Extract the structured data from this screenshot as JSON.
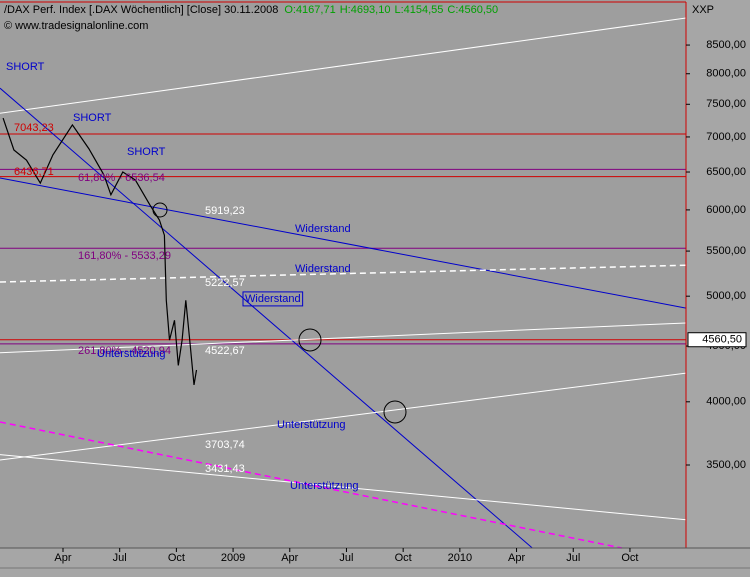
{
  "chart_data": {
    "type": "line",
    "title": "/DAX Perf. Index [.DAX  Wöchentlich] [Close] 30.11.2008",
    "ohlc": [
      "O:4167,71",
      "H:4693,10",
      "L:4154,55",
      "C:4560,50"
    ],
    "source": "© www.tradesignalonline.com",
    "y_axis_label": "XXP",
    "log_scale": true,
    "xlim": [
      "2007-12-21",
      "2010-12-30"
    ],
    "ylim": [
      2937,
      9000
    ],
    "yticks": [
      {
        "value": 3500,
        "label": "3500,00"
      },
      {
        "value": 4000,
        "label": "4000,00"
      },
      {
        "value": 4500,
        "label": "4500,00"
      },
      {
        "value": 5000,
        "label": "5000,00"
      },
      {
        "value": 5500,
        "label": "5500,00"
      },
      {
        "value": 6000,
        "label": "6000,00"
      },
      {
        "value": 6500,
        "label": "6500,00"
      },
      {
        "value": 7000,
        "label": "7000,00"
      },
      {
        "value": 7500,
        "label": "7500,00"
      },
      {
        "value": 8000,
        "label": "8000,00"
      },
      {
        "value": 8500,
        "label": "8500,00"
      }
    ],
    "xticks": [
      {
        "value": "2008-04",
        "label": "Apr"
      },
      {
        "value": "2008-07",
        "label": "Jul"
      },
      {
        "value": "2008-10",
        "label": "Oct"
      },
      {
        "value": "2009-01",
        "label": "2009"
      },
      {
        "value": "2009-04",
        "label": "Apr"
      },
      {
        "value": "2009-07",
        "label": "Jul"
      },
      {
        "value": "2009-10",
        "label": "Oct"
      },
      {
        "value": "2010-01",
        "label": "2010"
      },
      {
        "value": "2010-04",
        "label": "Apr"
      },
      {
        "value": "2010-07",
        "label": "Jul"
      },
      {
        "value": "2010-10",
        "label": "Oct"
      }
    ],
    "series": [
      {
        "color": "#000000",
        "x": [
          "2007-12-26",
          "2008-01-13",
          "2008-02-03",
          "2008-02-25",
          "2008-03-15",
          "2008-04-16",
          "2008-05-12",
          "2008-06-06",
          "2008-06-17",
          "2008-07-06",
          "2008-07-26",
          "2008-08-19",
          "2008-09-04",
          "2008-09-12",
          "2008-09-15",
          "2008-09-20",
          "2008-09-28",
          "2008-10-04",
          "2008-10-10",
          "2008-10-16",
          "2008-10-23",
          "2008-10-29",
          "2008-11-03"
        ],
        "values": [
          7285,
          6810,
          6665,
          6350,
          6740,
          7180,
          6830,
          6460,
          6195,
          6500,
          6390,
          6064,
          5873,
          5688,
          4957,
          4557,
          4752,
          4320,
          4557,
          4957,
          4510,
          4145,
          4278
        ]
      }
    ],
    "last": {
      "value": 4560.5,
      "label": "4560,50"
    },
    "levels": [
      {
        "value": 7043.23,
        "color": "#d00000"
      },
      {
        "value": 6536.54,
        "color": "#800080"
      },
      {
        "value": 6436.71,
        "color": "#d00000"
      },
      {
        "value": 5533.29,
        "color": "#800080"
      },
      {
        "value": 4560.5,
        "color": "#d00000"
      },
      {
        "value": 4520.94,
        "color": "#800080"
      }
    ],
    "trendlines": [
      {
        "x": [
          "2007-12-21",
          "2010-12-30"
        ],
        "values": [
          7360,
          9000
        ],
        "color": "#ffffff",
        "dash": false
      },
      {
        "x": [
          "2007-12-21",
          "2010-04-26"
        ],
        "values": [
          7760,
          2937
        ],
        "color": "#0000cc",
        "dash": false
      },
      {
        "x": [
          "2007-12-21",
          "2010-12-30"
        ],
        "values": [
          6418,
          4876
        ],
        "color": "#0000cc",
        "dash": false
      },
      {
        "x": [
          "2007-12-21",
          "2010-12-30"
        ],
        "values": [
          5152,
          5338
        ],
        "color": "#ffffff",
        "dash": true
      },
      {
        "x": [
          "2007-12-21",
          "2010-12-30"
        ],
        "values": [
          4437,
          4725
        ],
        "color": "#ffffff",
        "dash": false
      },
      {
        "x": [
          "2007-12-21",
          "2010-12-30"
        ],
        "values": [
          3537,
          4250
        ],
        "color": "#ffffff",
        "dash": false
      },
      {
        "x": [
          "2007-12-21",
          "2010-12-30"
        ],
        "values": [
          3578,
          3118
        ],
        "color": "#ffffff",
        "dash": false
      },
      {
        "x": [
          "2007-12-21",
          "2010-09-18"
        ],
        "values": [
          3833,
          2937
        ],
        "color": "#ff00ff",
        "dash": true
      }
    ],
    "annotations": [
      {
        "text": "SHORT",
        "color": "#0000cc"
      },
      {
        "text": "SHORT",
        "color": "#0000cc"
      },
      {
        "text": "SHORT",
        "color": "#0000cc"
      },
      {
        "text": "7043,23",
        "color": "#d00000"
      },
      {
        "text": "6436,71",
        "color": "#d00000"
      },
      {
        "text": "61,80% - 6536,54",
        "color": "#800080"
      },
      {
        "text": "5919,23",
        "color": "#ffffff"
      },
      {
        "text": "Widerstand",
        "color": "#0000cc"
      },
      {
        "text": "161,80% - 5533,29",
        "color": "#800080"
      },
      {
        "text": "Widerstand",
        "color": "#0000cc"
      },
      {
        "text": "5222,57",
        "color": "#ffffff"
      },
      {
        "text": "Widerstand",
        "color": "#0000cc",
        "boxed": true
      },
      {
        "text": "261,80% - 4520,94",
        "color": "#800080"
      },
      {
        "text": "Unterstützung",
        "color": "#0000cc"
      },
      {
        "text": "4522,67",
        "color": "#ffffff"
      },
      {
        "text": "Unterstützung",
        "color": "#0000cc"
      },
      {
        "text": "3703,74",
        "color": "#ffffff"
      },
      {
        "text": "3431,43",
        "color": "#ffffff"
      },
      {
        "text": "Unterstützung",
        "color": "#0000cc"
      }
    ]
  }
}
